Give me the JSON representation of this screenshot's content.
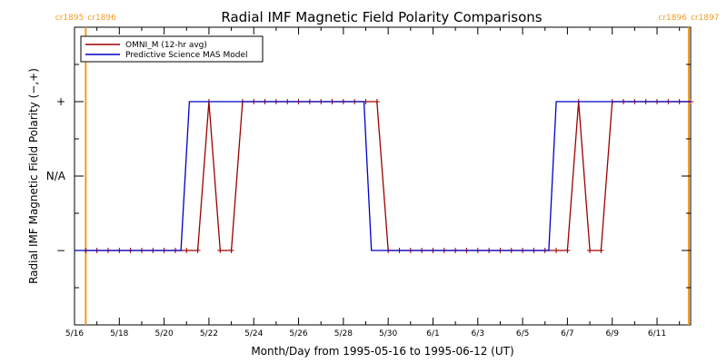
{
  "chart_data": {
    "type": "line",
    "title": "Radial IMF Magnetic Field Polarity Comparisons",
    "xlabel": "Month/Day from 1995-05-16 to 1995-06-12 (UT)",
    "ylabel": "Radial IMF Magnetic Field Polarity (−,+)",
    "x_unit": "date (UT)",
    "x_tick_labels": [
      "5/16",
      "5/18",
      "5/20",
      "5/22",
      "5/24",
      "5/26",
      "5/28",
      "5/30",
      "6/1",
      "6/3",
      "6/5",
      "6/7",
      "6/9",
      "6/11"
    ],
    "x_tick_values": [
      "1995-05-16",
      "1995-05-18",
      "1995-05-20",
      "1995-05-22",
      "1995-05-24",
      "1995-05-26",
      "1995-05-28",
      "1995-05-30",
      "1995-06-01",
      "1995-06-03",
      "1995-06-05",
      "1995-06-07",
      "1995-06-09",
      "1995-06-11"
    ],
    "xlim": [
      "1995-05-16T00:00",
      "1995-06-12T12:00"
    ],
    "y_tick_labels": [
      "+",
      "N/A",
      "−"
    ],
    "y_tick_values": [
      1,
      0,
      -1
    ],
    "ylim": [
      -2,
      2
    ],
    "carrington_markers": [
      {
        "time": "1995-05-16T12:00",
        "label_left": "cr1895",
        "label_right": "cr1896",
        "color": "#f39c1f"
      },
      {
        "time": "1995-06-12T10:00",
        "label_left": "cr1896",
        "label_right": "cr1897",
        "color": "#f39c1f"
      }
    ],
    "legend_position": "top-left",
    "series": [
      {
        "name": "OMNI_M (12-hr avg)",
        "color": "#9b0000",
        "marker": "+",
        "points": [
          [
            "1995-05-16T12:00",
            -1
          ],
          [
            "1995-05-17T00:00",
            -1
          ],
          [
            "1995-05-17T12:00",
            -1
          ],
          [
            "1995-05-18T00:00",
            -1
          ],
          [
            "1995-05-18T12:00",
            -1
          ],
          [
            "1995-05-19T00:00",
            -1
          ],
          [
            "1995-05-19T12:00",
            -1
          ],
          [
            "1995-05-20T00:00",
            -1
          ],
          [
            "1995-05-20T12:00",
            -1
          ],
          [
            "1995-05-21T00:00",
            -1
          ],
          [
            "1995-05-21T12:00",
            -1
          ],
          [
            "1995-05-22T00:00",
            1
          ],
          [
            "1995-05-22T12:00",
            -1
          ],
          [
            "1995-05-23T00:00",
            -1
          ],
          [
            "1995-05-23T12:00",
            1
          ],
          [
            "1995-05-24T00:00",
            1
          ],
          [
            "1995-05-24T12:00",
            1
          ],
          [
            "1995-05-25T00:00",
            1
          ],
          [
            "1995-05-25T12:00",
            1
          ],
          [
            "1995-05-26T00:00",
            1
          ],
          [
            "1995-05-26T12:00",
            1
          ],
          [
            "1995-05-27T00:00",
            1
          ],
          [
            "1995-05-27T12:00",
            1
          ],
          [
            "1995-05-28T00:00",
            1
          ],
          [
            "1995-05-28T12:00",
            1
          ],
          [
            "1995-05-29T00:00",
            1
          ],
          [
            "1995-05-29T12:00",
            1
          ],
          [
            "1995-05-30T00:00",
            -1
          ],
          [
            "1995-05-30T12:00",
            -1
          ],
          [
            "1995-05-31T00:00",
            -1
          ],
          [
            "1995-05-31T12:00",
            -1
          ],
          [
            "1995-06-01T00:00",
            -1
          ],
          [
            "1995-06-01T12:00",
            -1
          ],
          [
            "1995-06-02T00:00",
            -1
          ],
          [
            "1995-06-02T12:00",
            -1
          ],
          [
            "1995-06-03T00:00",
            -1
          ],
          [
            "1995-06-03T12:00",
            -1
          ],
          [
            "1995-06-04T00:00",
            -1
          ],
          [
            "1995-06-04T12:00",
            -1
          ],
          [
            "1995-06-05T00:00",
            -1
          ],
          [
            "1995-06-05T12:00",
            -1
          ],
          [
            "1995-06-06T00:00",
            -1
          ],
          [
            "1995-06-06T12:00",
            -1
          ],
          [
            "1995-06-07T00:00",
            -1
          ],
          [
            "1995-06-07T12:00",
            1
          ],
          [
            "1995-06-08T00:00",
            -1
          ],
          [
            "1995-06-08T12:00",
            -1
          ],
          [
            "1995-06-09T00:00",
            1
          ],
          [
            "1995-06-09T12:00",
            1
          ],
          [
            "1995-06-10T00:00",
            1
          ],
          [
            "1995-06-10T12:00",
            1
          ],
          [
            "1995-06-11T00:00",
            1
          ],
          [
            "1995-06-11T12:00",
            1
          ],
          [
            "1995-06-12T00:00",
            1
          ],
          [
            "1995-06-12T12:00",
            1
          ]
        ]
      },
      {
        "name": "Predictive Science MAS Model",
        "color": "#0000c8",
        "marker": "none",
        "points": [
          [
            "1995-05-16T00:00",
            -1
          ],
          [
            "1995-05-20T18:00",
            -1
          ],
          [
            "1995-05-21T03:00",
            1
          ],
          [
            "1995-05-28T22:00",
            1
          ],
          [
            "1995-05-29T06:00",
            -1
          ],
          [
            "1995-06-06T04:00",
            -1
          ],
          [
            "1995-06-06T12:00",
            1
          ],
          [
            "1995-06-12T12:00",
            1
          ]
        ]
      }
    ]
  }
}
